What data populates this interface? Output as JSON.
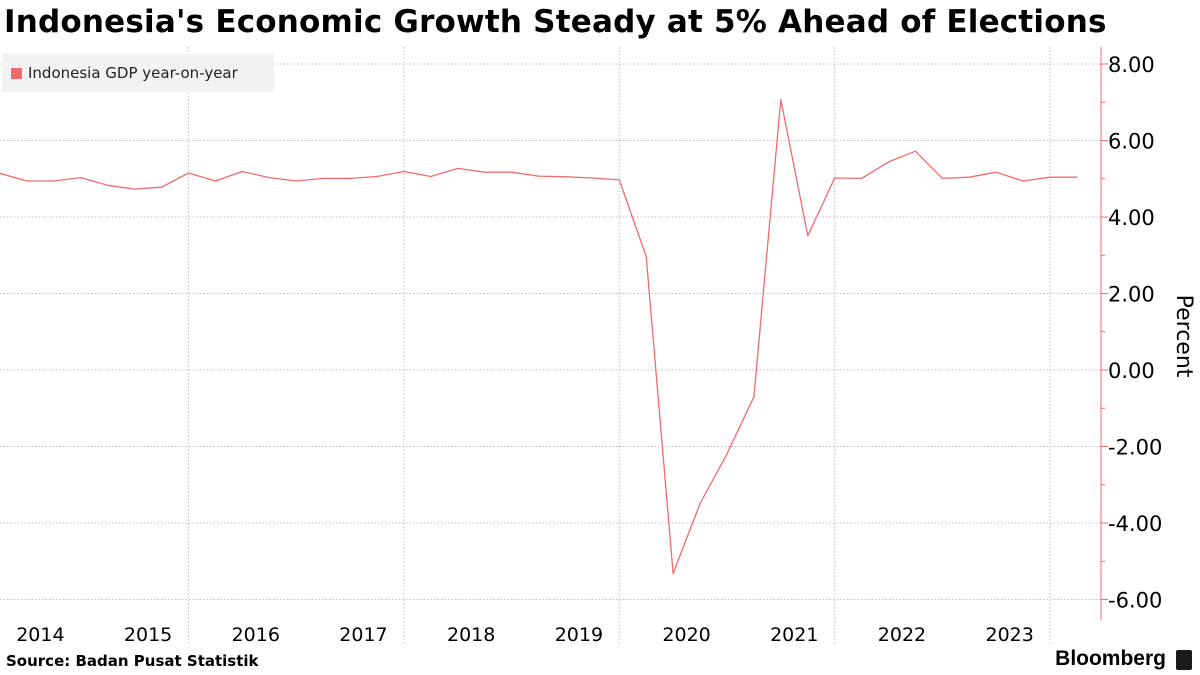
{
  "title": "Indonesia's Economic Growth Steady at 5% Ahead of Elections",
  "source": "Source:  Badan Pusat Statistik",
  "brand": "Bloomberg",
  "legend": {
    "label": "Indonesia GDP year-on-year",
    "color": "#f26b6b"
  },
  "chart_data": {
    "type": "line",
    "title": "Indonesia's Economic Growth Steady at 5% Ahead of Elections",
    "ylabel": "Percent",
    "xlabel": "",
    "ylim": [
      -6.5,
      8.3
    ],
    "yticks": [
      8,
      6,
      4,
      2,
      0,
      -2,
      -4,
      -6
    ],
    "ytick_labels": [
      "8.00",
      "6.00",
      "4.00",
      "2.00",
      "0.00",
      "-2.00",
      "-4.00",
      "-6.00"
    ],
    "year_labels": [
      "2014",
      "2015",
      "2016",
      "2017",
      "2018",
      "2019",
      "2020",
      "2021",
      "2022",
      "2023"
    ],
    "xlim": [
      2013.75,
      2023.75
    ],
    "grid": true,
    "series": [
      {
        "name": "Indonesia GDP year-on-year",
        "color": "#f26b6b",
        "x": [
          2013.75,
          2014.0,
          2014.25,
          2014.5,
          2014.75,
          2015.0,
          2015.25,
          2015.5,
          2015.75,
          2016.0,
          2016.25,
          2016.5,
          2016.75,
          2017.0,
          2017.25,
          2017.5,
          2017.75,
          2018.0,
          2018.25,
          2018.5,
          2018.75,
          2019.0,
          2019.25,
          2019.5,
          2019.75,
          2020.0,
          2020.25,
          2020.5,
          2020.75,
          2021.0,
          2021.25,
          2021.5,
          2021.75,
          2022.0,
          2022.25,
          2022.5,
          2022.75,
          2023.0,
          2023.25,
          2023.5,
          2023.75
        ],
        "values": [
          5.14,
          4.94,
          4.94,
          5.03,
          4.83,
          4.73,
          4.78,
          5.15,
          4.94,
          5.19,
          5.03,
          4.94,
          5.01,
          5.01,
          5.06,
          5.19,
          5.06,
          5.27,
          5.17,
          5.17,
          5.07,
          5.05,
          5.02,
          4.97,
          2.97,
          -5.32,
          -3.49,
          -2.19,
          -0.7,
          7.07,
          3.51,
          5.02,
          5.01,
          5.44,
          5.72,
          5.01,
          5.04,
          5.17,
          4.94,
          5.04,
          5.04
        ]
      }
    ]
  }
}
